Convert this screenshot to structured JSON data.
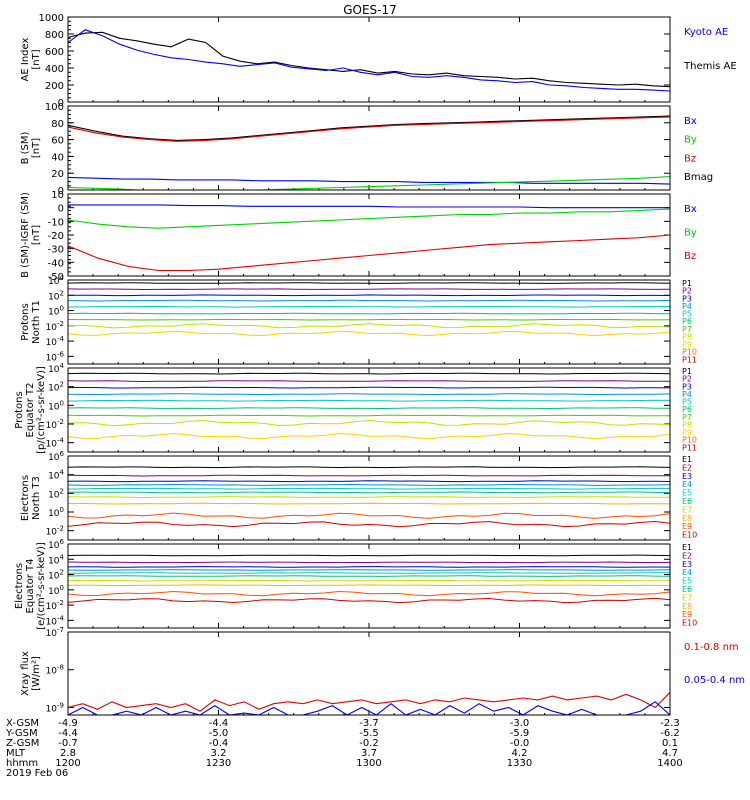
{
  "chart_data": {
    "type": "line",
    "title": "GOES-17",
    "colors": {
      "black": "#000000",
      "blue": "#0000ff",
      "green": "#00d000",
      "red": "#e00000",
      "cyan": "#00c8e6",
      "ramp11": [
        "#000000",
        "#80007f",
        "#0000c8",
        "#0090e0",
        "#00c8c8",
        "#00c080",
        "#40d000",
        "#c0e000",
        "#ffd000",
        "#ff7000",
        "#d00000"
      ],
      "ramp10": [
        "#000000",
        "#80007f",
        "#0000c8",
        "#0090e0",
        "#00c8c8",
        "#00c080",
        "#c0e000",
        "#ffb000",
        "#ff5000",
        "#d00000"
      ]
    },
    "x_axis": {
      "ticks": [
        "1200",
        "1230",
        "1300",
        "1330",
        "1400"
      ],
      "start": "1200",
      "end": "1400",
      "unit": "hhmm",
      "date": "2019 Feb 06"
    },
    "ephemeris": {
      "rows": [
        {
          "label": "X-GSM",
          "values": [
            "-4.9",
            "-4.4",
            "-3.7",
            "-3.0",
            "-2.3"
          ]
        },
        {
          "label": "Y-GSM",
          "values": [
            "-4.4",
            "-5.0",
            "-5.5",
            "-5.9",
            "-6.2"
          ]
        },
        {
          "label": "Z-GSM",
          "values": [
            "-0.7",
            "-0.4",
            "-0.2",
            "-0.0",
            "0.1"
          ]
        },
        {
          "label": "MLT",
          "values": [
            "2.8",
            "3.2",
            "3.7",
            "4.2",
            "4.7"
          ]
        }
      ],
      "time_label": "hhmm"
    },
    "panels": [
      {
        "name": "ae",
        "ylabel": [
          "AE Index",
          "[nT]"
        ],
        "scale": "linear",
        "ylim": [
          0,
          1000
        ],
        "ticks": [
          "1000",
          "800",
          "600",
          "400",
          "200",
          "0"
        ],
        "legend": [
          {
            "text": "Kyoto AE",
            "color": "blue"
          },
          {
            "text": "Themis AE",
            "color": "black"
          }
        ],
        "series": [
          {
            "name": "Themis AE",
            "color": "black",
            "values": [
              760,
              810,
              820,
              750,
              720,
              680,
              650,
              740,
              700,
              540,
              480,
              450,
              470,
              430,
              400,
              380,
              360,
              380,
              340,
              360,
              330,
              320,
              340,
              310,
              300,
              290,
              270,
              280,
              250,
              230,
              220,
              210,
              200,
              210,
              190,
              180
            ]
          },
          {
            "name": "Kyoto AE",
            "color": "blue",
            "values": [
              700,
              850,
              780,
              680,
              610,
              560,
              520,
              500,
              470,
              450,
              420,
              440,
              460,
              410,
              390,
              370,
              400,
              350,
              320,
              350,
              300,
              290,
              310,
              290,
              260,
              250,
              230,
              240,
              200,
              190,
              170,
              160,
              150,
              150,
              140,
              130
            ]
          }
        ]
      },
      {
        "name": "b-sm",
        "ylabel": [
          "B (SM)",
          "[nT]"
        ],
        "scale": "linear",
        "ylim": [
          0,
          100
        ],
        "ticks": [
          "100",
          "80",
          "60",
          "40",
          "20",
          "0"
        ],
        "legend": [
          {
            "text": "Bx",
            "color": "blue"
          },
          {
            "text": "By",
            "color": "green"
          },
          {
            "text": "Bz",
            "color": "red"
          },
          {
            "text": "Bmag",
            "color": "black"
          }
        ],
        "series": [
          {
            "name": "Bmag",
            "color": "black",
            "values": [
              77,
              70,
              64,
              61,
              59,
              60,
              62,
              65,
              68,
              71,
              74,
              76,
              78,
              79,
              80,
              81,
              82,
              83,
              84,
              85,
              86,
              87,
              88
            ]
          },
          {
            "name": "Bz",
            "color": "red",
            "values": [
              75,
              68,
              63,
              60,
              58,
              59,
              61,
              64,
              67,
              70,
              73,
              75,
              77,
              78,
              79,
              80,
              81,
              82,
              83,
              84,
              85,
              86,
              87
            ]
          },
          {
            "name": "Bx",
            "color": "blue",
            "values": [
              15,
              14,
              13,
              13,
              12,
              12,
              12,
              11,
              11,
              11,
              10,
              10,
              10,
              9,
              9,
              9,
              9,
              8,
              8,
              8,
              8,
              8,
              7
            ]
          },
          {
            "name": "By",
            "color": "green",
            "values": [
              3,
              2,
              1,
              -1,
              -2,
              -2,
              -1,
              0,
              1,
              2,
              3,
              4,
              5,
              6,
              7,
              8,
              9,
              10,
              11,
              12,
              13,
              14,
              16
            ]
          }
        ]
      },
      {
        "name": "b-igrf",
        "ylabel": [
          "B (SM)-IGRF (SM)",
          "[nT]"
        ],
        "scale": "linear",
        "ylim": [
          -50,
          10
        ],
        "ticks": [
          "10",
          "0",
          "-10",
          "-20",
          "-30",
          "-40",
          "-50"
        ],
        "legend": [
          {
            "text": "Bx",
            "color": "blue"
          },
          {
            "text": "By",
            "color": "green"
          },
          {
            "text": "Bz",
            "color": "red"
          }
        ],
        "series": [
          {
            "name": "Bx",
            "color": "blue",
            "values": [
              2,
              2,
              2,
              2,
              1.5,
              1.5,
              1,
              1,
              1,
              1,
              1,
              0.5,
              0.5,
              0.5,
              0.5,
              0.5,
              0,
              0,
              0,
              0,
              0
            ]
          },
          {
            "name": "By",
            "color": "green",
            "values": [
              -9,
              -12,
              -14,
              -15,
              -14,
              -13,
              -12,
              -11,
              -10,
              -9,
              -8,
              -7,
              -6,
              -5,
              -5,
              -4,
              -4,
              -3,
              -3,
              -2,
              -1
            ]
          },
          {
            "name": "Bz",
            "color": "red",
            "values": [
              -28,
              -37,
              -43,
              -46,
              -46,
              -45,
              -43,
              -41,
              -39,
              -37,
              -35,
              -33,
              -31,
              -29,
              -27,
              -26,
              -25,
              -24,
              -23,
              -22,
              -20
            ]
          }
        ]
      },
      {
        "name": "protons-north",
        "ylabel": [
          "Protons",
          "North T1"
        ],
        "scale": "log",
        "ylim": [
          -7,
          4
        ],
        "tick_exponents": [
          4,
          2,
          0,
          -2,
          -4,
          -6
        ],
        "legend_ramp": "ramp11",
        "legend": [
          "P1",
          "P2",
          "P3",
          "P4",
          "P5",
          "P6",
          "P7",
          "P8",
          "P9",
          "P10",
          "P11"
        ],
        "channel_levels": [
          3.6,
          2.8,
          2.0,
          1.3,
          0.5,
          -0.4,
          -1.2,
          -2.0,
          -3.0
        ]
      },
      {
        "name": "protons-equator",
        "ylabel": [
          "Protons",
          "Equator T2",
          "[p/(cm²-s-sr-keV)]"
        ],
        "scale": "log",
        "ylim": [
          -5,
          4
        ],
        "tick_exponents": [
          4,
          2,
          0,
          -2,
          -4
        ],
        "legend_ramp": "ramp11",
        "legend": [
          "P1",
          "P2",
          "P3",
          "P4",
          "P5",
          "P6",
          "P7",
          "P8",
          "P9",
          "P10",
          "P11"
        ],
        "channel_levels": [
          3.4,
          2.6,
          1.9,
          1.2,
          0.5,
          -0.3,
          -1.1,
          -1.9,
          -3.3
        ]
      },
      {
        "name": "electrons-north",
        "ylabel": [
          "Electrons",
          "North T3"
        ],
        "scale": "log",
        "ylim": [
          -3,
          6
        ],
        "tick_exponents": [
          6,
          4,
          2,
          0,
          -2
        ],
        "legend_ramp": "ramp10",
        "legend": [
          "E1",
          "E2",
          "E3",
          "E4",
          "E5",
          "E6",
          "E7",
          "E8",
          "E9",
          "E10"
        ],
        "channel_levels": [
          4.8,
          3.9,
          3.3,
          2.9,
          2.5,
          2.1,
          1.6,
          0.9,
          -0.4,
          -1.3
        ]
      },
      {
        "name": "electrons-equator",
        "ylabel": [
          "Electrons",
          "Equator T4",
          "[e/(cm²-s-sr-keV)]"
        ],
        "scale": "log",
        "ylim": [
          -5,
          6
        ],
        "tick_exponents": [
          6,
          4,
          2,
          0,
          -2,
          -4
        ],
        "legend_ramp": "ramp10",
        "legend": [
          "E1",
          "E2",
          "E3",
          "E4",
          "E5",
          "E6",
          "E7",
          "E8",
          "E9",
          "E10"
        ],
        "channel_levels": [
          4.5,
          3.6,
          3.0,
          2.6,
          2.2,
          1.8,
          1.2,
          0.6,
          -0.5,
          -1.4
        ]
      },
      {
        "name": "xray",
        "ylabel": [
          "Xray flux",
          "[W/m²]"
        ],
        "scale": "log",
        "ylim": [
          -9.2,
          -7
        ],
        "tick_exponents": [
          -7,
          -8,
          -9
        ],
        "legend": [
          {
            "text": "0.1-0.8 nm",
            "color": "red"
          },
          {
            "text": "0.05-0.4 nm",
            "color": "blue"
          }
        ],
        "series": [
          {
            "name": "0.1-0.8 nm",
            "color": "red",
            "values": [
              -9.0,
              -8.9,
              -9.05,
              -8.85,
              -9.0,
              -8.95,
              -8.9,
              -9.0,
              -8.9,
              -9.1,
              -8.8,
              -8.95,
              -8.85,
              -9.05,
              -8.9,
              -8.85,
              -8.9,
              -8.8,
              -8.9,
              -8.85,
              -8.8,
              -8.9,
              -8.85,
              -8.8,
              -8.9,
              -8.8,
              -8.85,
              -8.75,
              -8.8,
              -8.85,
              -8.8,
              -8.75,
              -8.8,
              -8.7,
              -8.8,
              -8.75,
              -8.7,
              -8.8,
              -8.65,
              -8.8,
              -9.0,
              -8.6
            ]
          },
          {
            "name": "0.05-0.4 nm",
            "color": "blue",
            "values": [
              -9.2,
              -9.0,
              -9.2,
              -9.2,
              -9.1,
              -9.2,
              -9.0,
              -9.2,
              -9.1,
              -9.2,
              -8.95,
              -9.2,
              -9.15,
              -9.2,
              -9.0,
              -9.2,
              -9.2,
              -9.1,
              -8.95,
              -9.2,
              -9.0,
              -9.2,
              -8.9,
              -9.2,
              -9.05,
              -9.2,
              -8.95,
              -9.15,
              -8.9,
              -9.1,
              -9.0,
              -9.2,
              -8.95,
              -9.1,
              -9.2,
              -9.05,
              -9.2,
              -9.2,
              -9.2,
              -9.1,
              -8.85,
              -9.2
            ]
          }
        ]
      }
    ]
  }
}
